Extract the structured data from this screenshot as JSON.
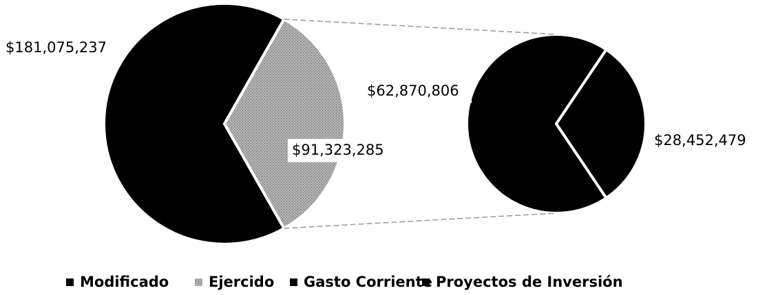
{
  "chart_data": {
    "type": "pie_of_pie",
    "pies": [
      {
        "categories": [
          "Modificado",
          "Ejercido"
        ],
        "values": [
          181075237,
          91323285
        ],
        "value_labels": [
          "$181,075,237",
          "$91,323,285"
        ],
        "colors": [
          "#000000",
          "#9c9c9c"
        ]
      },
      {
        "categories": [
          "Gasto Corriente",
          "Proyectos de Inversión"
        ],
        "values": [
          62870806,
          28452479
        ],
        "value_labels": [
          "$62,870,806",
          "$28,452,479"
        ],
        "colors": [
          "#000000",
          "#000000"
        ]
      }
    ],
    "legend": true
  }
}
